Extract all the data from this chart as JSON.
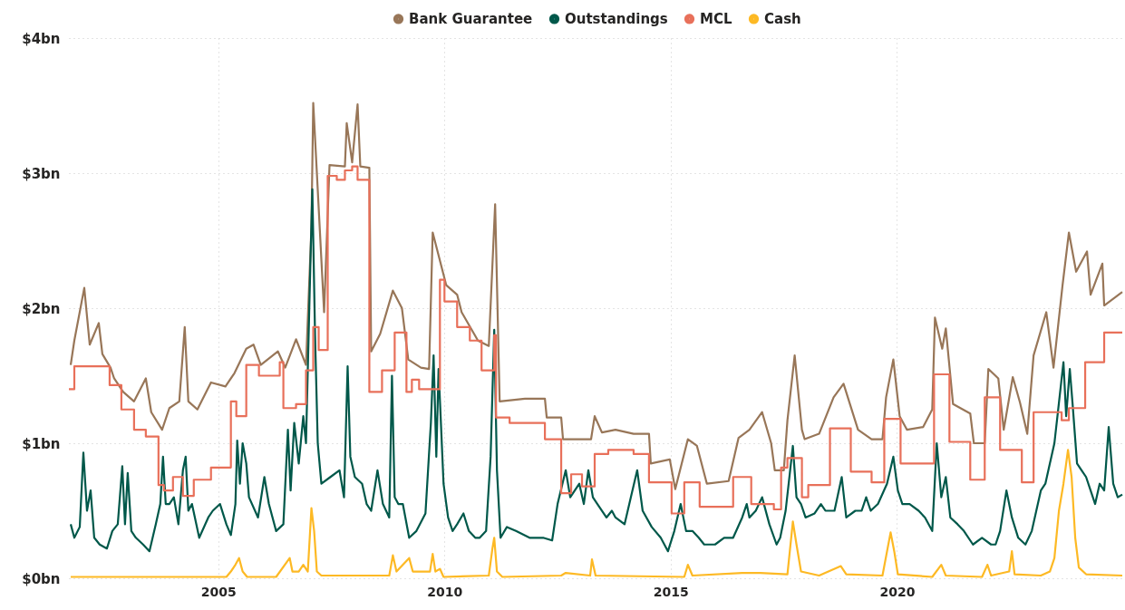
{
  "chart_data": {
    "type": "line",
    "legend": "top",
    "grid": true,
    "xlim": [
      2001.7,
      2025
    ],
    "xticks": [
      2005,
      2010,
      2015,
      2020
    ],
    "ylim": [
      0,
      4
    ],
    "yticks": [
      {
        "value": 0,
        "label": "$0bn"
      },
      {
        "value": 1,
        "label": "$1bn"
      },
      {
        "value": 2,
        "label": "$2bn"
      },
      {
        "value": 3,
        "label": "$3bn"
      },
      {
        "value": 4,
        "label": "$4bn"
      }
    ],
    "series": [
      {
        "name": "Bank Guarantee",
        "type": "line",
        "color": "#987658",
        "x": [
          2001.74,
          2001.82,
          2002.04,
          2002.16,
          2002.36,
          2002.44,
          2002.62,
          2002.7,
          2002.9,
          2003.14,
          2003.4,
          2003.52,
          2003.76,
          2003.92,
          2004.14,
          2004.26,
          2004.34,
          2004.54,
          2004.84,
          2005.16,
          2005.36,
          2005.62,
          2005.78,
          2005.94,
          2006.32,
          2006.48,
          2006.72,
          2006.94,
          2007.06,
          2007.1,
          2007.34,
          2007.46,
          2007.8,
          2007.84,
          2007.96,
          2008.08,
          2008.14,
          2008.34,
          2008.38,
          2008.58,
          2008.86,
          2009.06,
          2009.2,
          2009.48,
          2009.66,
          2009.74,
          2010.04,
          2010.28,
          2010.38,
          2010.74,
          2010.98,
          2011.12,
          2011.22,
          2011.78,
          2012.22,
          2012.26,
          2012.58,
          2012.62,
          2013.24,
          2013.32,
          2013.48,
          2013.78,
          2014.18,
          2014.52,
          2014.56,
          2014.98,
          2015.1,
          2015.38,
          2015.58,
          2015.8,
          2016.28,
          2016.5,
          2016.74,
          2017.02,
          2017.22,
          2017.3,
          2017.5,
          2017.58,
          2017.74,
          2017.9,
          2017.96,
          2018.28,
          2018.6,
          2018.82,
          2019.14,
          2019.44,
          2019.68,
          2019.76,
          2019.92,
          2020.06,
          2020.22,
          2020.58,
          2020.78,
          2020.84,
          2021.0,
          2021.08,
          2021.24,
          2021.62,
          2021.7,
          2021.94,
          2022.02,
          2022.24,
          2022.36,
          2022.56,
          2022.72,
          2022.88,
          2023.02,
          2023.3,
          2023.46,
          2023.66,
          2023.8,
          2023.96,
          2024.2,
          2024.28,
          2024.54,
          2024.58,
          2024.98
        ],
        "values": [
          1.58,
          1.76,
          2.15,
          1.73,
          1.89,
          1.66,
          1.56,
          1.48,
          1.38,
          1.31,
          1.48,
          1.23,
          1.1,
          1.26,
          1.31,
          1.86,
          1.31,
          1.25,
          1.45,
          1.42,
          1.52,
          1.7,
          1.73,
          1.58,
          1.68,
          1.56,
          1.77,
          1.58,
          2.6,
          3.52,
          1.97,
          3.06,
          3.05,
          3.37,
          3.08,
          3.51,
          3.05,
          3.04,
          1.68,
          1.81,
          2.13,
          2.0,
          1.62,
          1.56,
          1.55,
          2.56,
          2.17,
          2.1,
          1.97,
          1.76,
          1.72,
          2.77,
          1.31,
          1.33,
          1.33,
          1.19,
          1.19,
          1.03,
          1.03,
          1.2,
          1.08,
          1.1,
          1.07,
          1.07,
          0.85,
          0.88,
          0.66,
          1.03,
          0.98,
          0.7,
          0.72,
          1.04,
          1.1,
          1.23,
          1.0,
          0.8,
          0.8,
          1.17,
          1.65,
          1.1,
          1.03,
          1.07,
          1.34,
          1.44,
          1.1,
          1.03,
          1.03,
          1.34,
          1.62,
          1.2,
          1.1,
          1.12,
          1.25,
          1.93,
          1.7,
          1.85,
          1.29,
          1.22,
          1.0,
          1.0,
          1.55,
          1.48,
          1.1,
          1.49,
          1.3,
          1.07,
          1.65,
          1.97,
          1.56,
          2.17,
          2.56,
          2.27,
          2.42,
          2.1,
          2.33,
          2.02,
          2.12
        ]
      },
      {
        "name": "Outstandings",
        "type": "line",
        "color": "#00584a",
        "x": [
          2001.74,
          2001.82,
          2001.94,
          2002.02,
          2002.1,
          2002.18,
          2002.26,
          2002.38,
          2002.54,
          2002.66,
          2002.78,
          2002.88,
          2002.94,
          2003.0,
          2003.08,
          2003.18,
          2003.34,
          2003.48,
          2003.62,
          2003.72,
          2003.78,
          2003.84,
          2003.92,
          2004.02,
          2004.12,
          2004.22,
          2004.28,
          2004.34,
          2004.42,
          2004.58,
          2004.78,
          2004.88,
          2005.04,
          2005.18,
          2005.28,
          2005.38,
          2005.42,
          2005.48,
          2005.54,
          2005.62,
          2005.68,
          2005.88,
          2006.02,
          2006.12,
          2006.28,
          2006.44,
          2006.54,
          2006.6,
          2006.68,
          2006.78,
          2006.88,
          2006.94,
          2007.02,
          2007.08,
          2007.14,
          2007.2,
          2007.28,
          2007.48,
          2007.68,
          2007.78,
          2007.86,
          2007.92,
          2008.02,
          2008.18,
          2008.28,
          2008.38,
          2008.52,
          2008.64,
          2008.78,
          2008.84,
          2008.9,
          2008.98,
          2009.08,
          2009.22,
          2009.38,
          2009.58,
          2009.7,
          2009.76,
          2009.82,
          2009.87,
          2009.98,
          2010.08,
          2010.18,
          2010.28,
          2010.42,
          2010.54,
          2010.68,
          2010.78,
          2010.92,
          2011.02,
          2011.1,
          2011.16,
          2011.24,
          2011.38,
          2011.58,
          2011.88,
          2012.18,
          2012.38,
          2012.5,
          2012.68,
          2012.78,
          2012.98,
          2013.08,
          2013.18,
          2013.28,
          2013.38,
          2013.58,
          2013.7,
          2013.78,
          2013.98,
          2014.12,
          2014.26,
          2014.38,
          2014.58,
          2014.78,
          2014.94,
          2015.08,
          2015.22,
          2015.34,
          2015.48,
          2015.62,
          2015.74,
          2015.98,
          2016.18,
          2016.38,
          2016.58,
          2016.68,
          2016.74,
          2016.88,
          2017.02,
          2017.18,
          2017.34,
          2017.42,
          2017.54,
          2017.7,
          2017.78,
          2017.88,
          2017.98,
          2018.18,
          2018.32,
          2018.42,
          2018.62,
          2018.78,
          2018.88,
          2019.08,
          2019.22,
          2019.32,
          2019.42,
          2019.58,
          2019.78,
          2019.92,
          2020.02,
          2020.12,
          2020.28,
          2020.48,
          2020.62,
          2020.78,
          2020.88,
          2020.98,
          2021.08,
          2021.18,
          2021.34,
          2021.48,
          2021.68,
          2021.88,
          2022.08,
          2022.18,
          2022.28,
          2022.42,
          2022.54,
          2022.68,
          2022.84,
          2022.98,
          2023.08,
          2023.18,
          2023.28,
          2023.38,
          2023.48,
          2023.58,
          2023.68,
          2023.74,
          2023.82,
          2023.88,
          2023.98,
          2024.08,
          2024.18,
          2024.28,
          2024.38,
          2024.48,
          2024.58,
          2024.68,
          2024.78,
          2024.88,
          2024.98
        ],
        "values": [
          0.4,
          0.3,
          0.38,
          0.93,
          0.5,
          0.65,
          0.3,
          0.25,
          0.22,
          0.35,
          0.4,
          0.83,
          0.4,
          0.78,
          0.35,
          0.3,
          0.25,
          0.2,
          0.4,
          0.55,
          0.9,
          0.55,
          0.55,
          0.6,
          0.4,
          0.8,
          0.9,
          0.5,
          0.55,
          0.3,
          0.45,
          0.5,
          0.55,
          0.4,
          0.32,
          0.55,
          1.02,
          0.7,
          1.0,
          0.85,
          0.6,
          0.45,
          0.75,
          0.55,
          0.35,
          0.4,
          1.1,
          0.65,
          1.15,
          0.85,
          1.2,
          1.0,
          2.1,
          2.88,
          1.8,
          1.0,
          0.7,
          0.75,
          0.8,
          0.6,
          1.57,
          0.9,
          0.75,
          0.7,
          0.55,
          0.5,
          0.8,
          0.55,
          0.45,
          1.5,
          0.6,
          0.55,
          0.55,
          0.3,
          0.35,
          0.48,
          1.15,
          1.65,
          0.9,
          1.55,
          0.7,
          0.45,
          0.35,
          0.4,
          0.48,
          0.35,
          0.3,
          0.3,
          0.35,
          0.9,
          1.84,
          0.8,
          0.3,
          0.38,
          0.35,
          0.3,
          0.3,
          0.28,
          0.55,
          0.8,
          0.6,
          0.7,
          0.55,
          0.8,
          0.6,
          0.55,
          0.45,
          0.5,
          0.45,
          0.4,
          0.6,
          0.8,
          0.5,
          0.38,
          0.3,
          0.2,
          0.35,
          0.55,
          0.35,
          0.35,
          0.3,
          0.25,
          0.25,
          0.3,
          0.3,
          0.45,
          0.55,
          0.45,
          0.5,
          0.6,
          0.4,
          0.25,
          0.3,
          0.5,
          0.98,
          0.6,
          0.55,
          0.45,
          0.48,
          0.55,
          0.5,
          0.5,
          0.75,
          0.45,
          0.5,
          0.5,
          0.6,
          0.5,
          0.55,
          0.7,
          0.9,
          0.65,
          0.55,
          0.55,
          0.5,
          0.45,
          0.35,
          1.0,
          0.6,
          0.75,
          0.45,
          0.4,
          0.35,
          0.25,
          0.3,
          0.25,
          0.25,
          0.35,
          0.65,
          0.45,
          0.3,
          0.25,
          0.35,
          0.5,
          0.65,
          0.7,
          0.85,
          1.0,
          1.3,
          1.6,
          1.2,
          1.55,
          1.3,
          0.85,
          0.8,
          0.75,
          0.65,
          0.55,
          0.7,
          0.65,
          1.12,
          0.7,
          0.6,
          0.62
        ]
      },
      {
        "name": "MCL",
        "type": "step",
        "color": "#e8705a",
        "x": [
          2001.7,
          2001.82,
          2002.6,
          2002.86,
          2003.14,
          2003.4,
          2003.68,
          2003.8,
          2004.0,
          2004.22,
          2004.46,
          2004.84,
          2005.28,
          2005.4,
          2005.62,
          2005.9,
          2006.36,
          2006.44,
          2006.72,
          2006.94,
          2007.1,
          2007.22,
          2007.42,
          2007.62,
          2007.8,
          2007.96,
          2008.08,
          2008.34,
          2008.62,
          2008.9,
          2009.16,
          2009.28,
          2009.44,
          2009.9,
          2010.0,
          2010.28,
          2010.56,
          2010.82,
          2011.1,
          2011.14,
          2011.44,
          2012.22,
          2012.58,
          2012.8,
          2013.04,
          2013.32,
          2013.62,
          2014.18,
          2014.52,
          2015.02,
          2015.3,
          2015.64,
          2016.38,
          2016.78,
          2017.28,
          2017.44,
          2017.58,
          2017.9,
          2018.04,
          2018.52,
          2018.98,
          2019.44,
          2019.72,
          2020.08,
          2020.82,
          2021.16,
          2021.62,
          2021.94,
          2022.28,
          2022.76,
          2023.02,
          2023.64,
          2023.8,
          2024.16,
          2024.58,
          2024.98
        ],
        "values": [
          1.4,
          1.57,
          1.43,
          1.25,
          1.1,
          1.05,
          0.69,
          0.65,
          0.75,
          0.61,
          0.73,
          0.82,
          1.31,
          1.2,
          1.58,
          1.5,
          1.6,
          1.26,
          1.29,
          1.54,
          1.86,
          1.69,
          2.98,
          2.95,
          3.02,
          3.05,
          2.95,
          1.38,
          1.54,
          1.82,
          1.38,
          1.47,
          1.4,
          2.21,
          2.05,
          1.86,
          1.76,
          1.54,
          1.8,
          1.19,
          1.15,
          1.03,
          0.63,
          0.77,
          0.68,
          0.92,
          0.95,
          0.92,
          0.71,
          0.48,
          0.71,
          0.53,
          0.75,
          0.55,
          0.51,
          0.82,
          0.89,
          0.6,
          0.69,
          1.11,
          0.79,
          0.71,
          1.18,
          0.85,
          1.51,
          1.01,
          0.73,
          1.34,
          0.95,
          0.71,
          1.23,
          1.17,
          1.26,
          1.6,
          1.82,
          1.82
        ]
      },
      {
        "name": "Cash",
        "type": "line",
        "color": "#fdb924",
        "x": [
          2001.74,
          2005.18,
          2005.28,
          2005.38,
          2005.46,
          2005.54,
          2005.64,
          2006.28,
          2006.58,
          2006.64,
          2006.78,
          2006.88,
          2006.98,
          2007.06,
          2007.12,
          2007.18,
          2007.28,
          2008.78,
          2008.86,
          2008.94,
          2009.22,
          2009.3,
          2009.68,
          2009.74,
          2009.8,
          2009.9,
          2009.98,
          2010.98,
          2011.06,
          2011.1,
          2011.16,
          2011.28,
          2012.58,
          2012.68,
          2013.22,
          2013.26,
          2013.34,
          2015.3,
          2015.38,
          2015.48,
          2016.58,
          2016.98,
          2017.58,
          2017.7,
          2017.78,
          2017.88,
          2018.28,
          2018.76,
          2018.88,
          2019.68,
          2019.86,
          2019.94,
          2020.02,
          2020.78,
          2020.98,
          2021.08,
          2021.88,
          2022.0,
          2022.08,
          2022.48,
          2022.54,
          2022.6,
          2023.18,
          2023.38,
          2023.48,
          2023.58,
          2023.68,
          2023.78,
          2023.86,
          2023.94,
          2024.02,
          2024.18,
          2024.98
        ],
        "values": [
          0.01,
          0.01,
          0.05,
          0.1,
          0.15,
          0.05,
          0.01,
          0.01,
          0.15,
          0.05,
          0.05,
          0.1,
          0.05,
          0.52,
          0.35,
          0.05,
          0.02,
          0.02,
          0.17,
          0.05,
          0.15,
          0.05,
          0.05,
          0.18,
          0.05,
          0.07,
          0.01,
          0.02,
          0.22,
          0.3,
          0.05,
          0.01,
          0.02,
          0.04,
          0.02,
          0.14,
          0.02,
          0.01,
          0.1,
          0.02,
          0.04,
          0.04,
          0.03,
          0.42,
          0.25,
          0.05,
          0.02,
          0.09,
          0.03,
          0.02,
          0.34,
          0.2,
          0.03,
          0.01,
          0.1,
          0.02,
          0.01,
          0.1,
          0.02,
          0.05,
          0.2,
          0.03,
          0.02,
          0.05,
          0.15,
          0.5,
          0.7,
          0.95,
          0.75,
          0.3,
          0.08,
          0.03,
          0.02
        ]
      }
    ]
  }
}
